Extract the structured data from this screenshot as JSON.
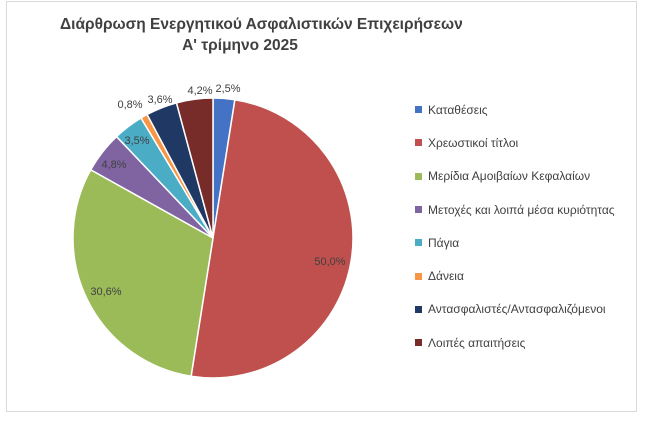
{
  "chart_data": {
    "type": "pie",
    "title": "Διάρθρωση Ενεργητικού Ασφαλιστικών Επιχειρήσεων",
    "subtitle": "Α' τρίμηνο 2025",
    "categories": [
      "Καταθέσεις",
      "Χρεωστικοί τίτλοι",
      "Μερίδια Αμοιβαίων Κεφαλαίων",
      "Μετοχές και λοιπά μέσα κυριότητας",
      "Πάγια",
      "Δάνεια",
      "Αντασφαλιστές/Αντασφαλιζόμενοι",
      "Λοιπές απαιτήσεις"
    ],
    "values": [
      2.5,
      50.0,
      30.6,
      4.8,
      3.5,
      0.8,
      3.6,
      4.2
    ],
    "data_labels": [
      "2,5%",
      "50,0%",
      "30,6%",
      "4,8%",
      "3,5%",
      "0,8%",
      "3,6%",
      "4,2%"
    ],
    "colors": [
      "#4472C4",
      "#C0504D",
      "#9BBB59",
      "#8064A2",
      "#4BACC6",
      "#F79646",
      "#1F3864",
      "#772C2A"
    ],
    "legend_position": "right"
  }
}
